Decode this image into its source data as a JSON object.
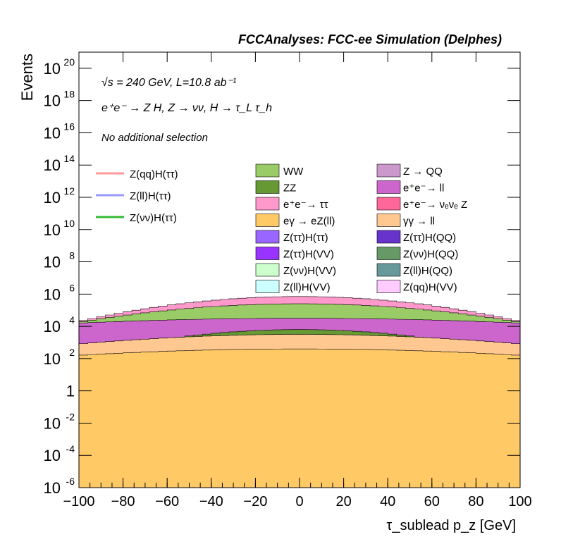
{
  "header": "FCCAnalyses: FCC-ee Simulation (Delphes)",
  "info": {
    "energy_lumi": "√s = 240 GeV, L=10.8 ab⁻¹",
    "process": "e⁺e⁻ → Z H, Z → νν, H → τ_L τ_h",
    "selection": "No additional selection"
  },
  "chart_data": {
    "type": "area",
    "title": "FCCAnalyses: FCC-ee Simulation (Delphes)",
    "xlabel": "τ_sublead p_z [GeV]",
    "ylabel": "Events",
    "xlim": [
      -100,
      100
    ],
    "ylim": [
      1e-06,
      1e+21
    ],
    "yscale": "log",
    "x_ticks": [
      -100,
      -80,
      -60,
      -40,
      -20,
      0,
      20,
      40,
      60,
      80,
      100
    ],
    "x_tick_labels": [
      "−100",
      "−80",
      "−60",
      "−40",
      "−20",
      "0",
      "20",
      "40",
      "60",
      "80",
      "100"
    ],
    "y_ticks": [
      1e-06,
      0.0001,
      0.01,
      1,
      100.0,
      10000.0,
      1000000.0,
      100000000.0,
      10000000000.0,
      1000000000000.0,
      100000000000000.0,
      1e+16,
      1e+18,
      1e+20
    ],
    "y_tick_labels": [
      {
        "base": "10",
        "exp": "-6"
      },
      {
        "base": "10",
        "exp": "-4"
      },
      {
        "base": "10",
        "exp": "-2"
      },
      {
        "base": "1",
        "exp": ""
      },
      {
        "base": "10",
        "exp": "2"
      },
      {
        "base": "10",
        "exp": "4"
      },
      {
        "base": "10",
        "exp": "6"
      },
      {
        "base": "10",
        "exp": "8"
      },
      {
        "base": "10",
        "exp": "10"
      },
      {
        "base": "10",
        "exp": "12"
      },
      {
        "base": "10",
        "exp": "14"
      },
      {
        "base": "10",
        "exp": "16"
      },
      {
        "base": "10",
        "exp": "18"
      },
      {
        "base": "10",
        "exp": "20"
      }
    ],
    "stacked_profiles_log10": [
      {
        "name": "ZZ",
        "color": "#669933",
        "center": 3.8,
        "edge": 2.2,
        "start": -100
      },
      {
        "name": "eγ → eZ(ll)",
        "color": "#ffc966",
        "center": 2.6,
        "edge": 2.2,
        "start": -100
      },
      {
        "name": "γγ → ll",
        "color": "#ffc891",
        "center": 3.5,
        "edge": 2.9,
        "start": -100
      },
      {
        "name": "e⁺e⁻ → ll",
        "color": "#cc66cc",
        "center": 4.5,
        "edge": 4.2,
        "start": -100
      },
      {
        "name": "WW",
        "color": "#99cc66",
        "center": 5.4,
        "edge": 4.25,
        "start": -100
      },
      {
        "name": "e⁺e⁻ → ττ",
        "color": "#ff99cc",
        "center": 5.85,
        "edge": 4.3,
        "start": -100
      }
    ],
    "overlays": [
      {
        "name": "Z(qq)H(ττ)",
        "color": "#ff9999"
      },
      {
        "name": "Z(ll)H(ττ)",
        "color": "#9999ff"
      },
      {
        "name": "Z(νν)H(ττ)",
        "color": "#33bb33"
      }
    ],
    "legend": {
      "placement": "top",
      "lines": [
        {
          "label": "Z(qq)H(ττ)",
          "color": "#ff9999"
        },
        {
          "label": "Z(ll)H(ττ)",
          "color": "#9999ff"
        },
        {
          "label": "Z(νν)H(ττ)",
          "color": "#33bb33"
        }
      ],
      "col1": [
        {
          "label": "WW",
          "color": "#99cc66"
        },
        {
          "label": "ZZ",
          "color": "#669933"
        },
        {
          "label": "e⁺e⁻→ ττ",
          "color": "#ff99cc"
        },
        {
          "label": "eγ → eZ(ll)",
          "color": "#ffc966"
        },
        {
          "label": "Z(ττ)H(ττ)",
          "color": "#9966ff"
        },
        {
          "label": "Z(ττ)H(VV)",
          "color": "#9933ff"
        },
        {
          "label": "Z(νν)H(VV)",
          "color": "#ccffcc"
        },
        {
          "label": "Z(ll)H(VV)",
          "color": "#ccffff"
        }
      ],
      "col2": [
        {
          "label": "Z → QQ",
          "color": "#cc99cc"
        },
        {
          "label": "e⁺e⁻→ ll",
          "color": "#cc66cc"
        },
        {
          "label": "e⁺e⁻→ νₑνₑ Z",
          "color": "#ff6699"
        },
        {
          "label": "γγ → ll",
          "color": "#ffc891"
        },
        {
          "label": "Z(ττ)H(QQ)",
          "color": "#6633cc"
        },
        {
          "label": "Z(νν)H(QQ)",
          "color": "#669966"
        },
        {
          "label": "Z(ll)H(QQ)",
          "color": "#669999"
        },
        {
          "label": "Z(qq)H(VV)",
          "color": "#ffccff"
        }
      ]
    }
  }
}
